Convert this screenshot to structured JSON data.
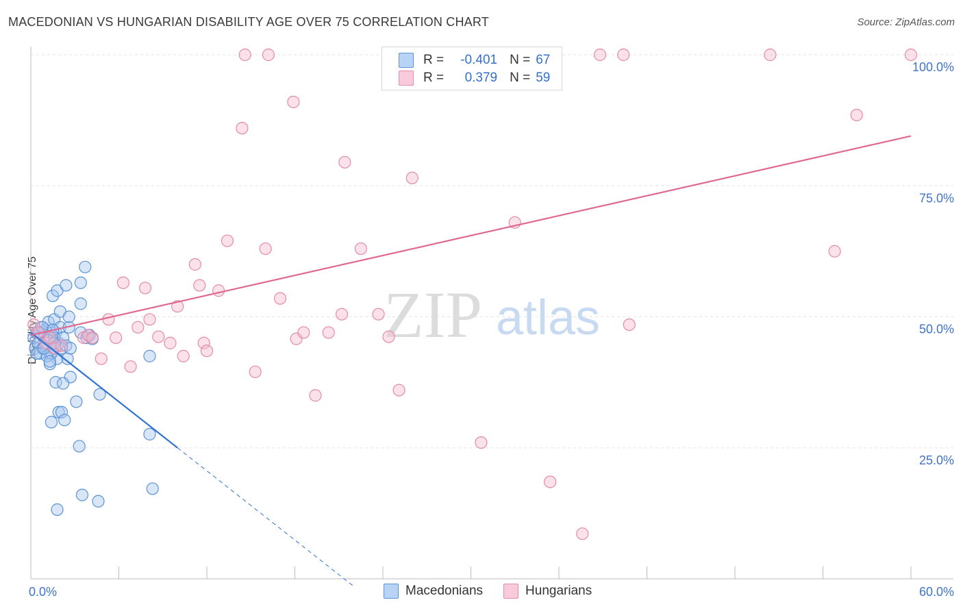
{
  "title": "MACEDONIAN VS HUNGARIAN DISABILITY AGE OVER 75 CORRELATION CHART",
  "source": "Source: ZipAtlas.com",
  "watermark": {
    "zip": "ZIP",
    "atlas": "atlas"
  },
  "legend": {
    "rows": [
      {
        "r_label": "R =",
        "r_value": "-0.401",
        "n_label": "N =",
        "n_value": "67"
      },
      {
        "r_label": "R =",
        "r_value": "0.379",
        "n_label": "N =",
        "n_value": "59"
      }
    ]
  },
  "bottom_legend": {
    "items": [
      "Macedonians",
      "Hungarians"
    ]
  },
  "colors": {
    "blue_fill": "#a8c8f0",
    "blue_stroke": "#5b93d6",
    "blue_line": "#2f72d2",
    "pink_fill": "#f5bcd0",
    "pink_stroke": "#e58aa8",
    "pink_line": "#e06890",
    "axis_text": "#3f74c9",
    "grid": "#e3e3e3"
  },
  "chart_data": {
    "type": "scatter",
    "title": "MACEDONIAN VS HUNGARIAN DISABILITY AGE OVER 75 CORRELATION CHART",
    "xlabel": "",
    "ylabel": "Disability Age Over 75",
    "xlim": [
      0,
      60
    ],
    "ylim": [
      0,
      105
    ],
    "x_tick_labels": [
      "0.0%",
      "60.0%"
    ],
    "y_ticks": [
      25,
      50,
      75,
      100
    ],
    "y_tick_labels": [
      "25.0%",
      "50.0%",
      "75.0%",
      "100.0%"
    ],
    "grid": true,
    "series": [
      {
        "name": "Macedonians",
        "r": -0.401,
        "n": 67,
        "trend": {
          "x_start": 0,
          "y_start": 47,
          "x_solid_end": 10,
          "x_dash_end": 22,
          "slope": -2.2
        },
        "points": [
          [
            0.2,
            46
          ],
          [
            0.3,
            44
          ],
          [
            0.4,
            47
          ],
          [
            0.5,
            45
          ],
          [
            0.6,
            43
          ],
          [
            0.7,
            48
          ],
          [
            0.8,
            44
          ],
          [
            0.9,
            46
          ],
          [
            1.0,
            47.5
          ],
          [
            1.1,
            45
          ],
          [
            1.2,
            49
          ],
          [
            1.3,
            43
          ],
          [
            1.4,
            46
          ],
          [
            1.5,
            44
          ],
          [
            1.6,
            49.5
          ],
          [
            1.7,
            47
          ],
          [
            1.8,
            42
          ],
          [
            1.9,
            45
          ],
          [
            2.0,
            48
          ],
          [
            2.1,
            44
          ],
          [
            1.0,
            46.5
          ],
          [
            1.2,
            45.5
          ],
          [
            1.4,
            43
          ],
          [
            0.6,
            47
          ],
          [
            0.8,
            48
          ],
          [
            1.6,
            46
          ],
          [
            1.8,
            44.5
          ],
          [
            2.2,
            46
          ],
          [
            0.4,
            43
          ],
          [
            2.5,
            42
          ],
          [
            1.3,
            41
          ],
          [
            1.1,
            42.5
          ],
          [
            0.9,
            44
          ],
          [
            1.5,
            47.5
          ],
          [
            2.4,
            44.5
          ],
          [
            2.6,
            48
          ],
          [
            2.7,
            44
          ],
          [
            3.4,
            47
          ],
          [
            3.8,
            46
          ],
          [
            4.0,
            46.5
          ],
          [
            4.2,
            45.8
          ],
          [
            1.3,
            41.5
          ],
          [
            1.5,
            54
          ],
          [
            1.8,
            55
          ],
          [
            2.0,
            51
          ],
          [
            2.6,
            50
          ],
          [
            2.4,
            56
          ],
          [
            3.4,
            56.5
          ],
          [
            3.4,
            52.5
          ],
          [
            3.7,
            59.5
          ],
          [
            1.7,
            37.5
          ],
          [
            2.7,
            38.5
          ],
          [
            2.2,
            37.3
          ],
          [
            3.1,
            33.8
          ],
          [
            4.7,
            35.2
          ],
          [
            1.9,
            31.8
          ],
          [
            2.1,
            31.8
          ],
          [
            2.3,
            30.3
          ],
          [
            1.4,
            29.9
          ],
          [
            8.1,
            42.5
          ],
          [
            8.1,
            27.6
          ],
          [
            3.3,
            25.3
          ],
          [
            3.5,
            16
          ],
          [
            4.6,
            14.8
          ],
          [
            8.3,
            17.2
          ],
          [
            1.8,
            13.2
          ],
          [
            1.6,
            45
          ]
        ]
      },
      {
        "name": "Hungarians",
        "r": 0.379,
        "n": 59,
        "trend": {
          "x_start": 0,
          "y_start": 46.5,
          "x_end": 60,
          "y_end": 84.5
        },
        "points": [
          [
            0.2,
            48.5
          ],
          [
            0.5,
            47
          ],
          [
            1.0,
            45
          ],
          [
            1.3,
            46
          ],
          [
            1.6,
            44
          ],
          [
            2.1,
            44.5
          ],
          [
            3.6,
            46
          ],
          [
            3.9,
            46.5
          ],
          [
            4.2,
            46
          ],
          [
            4.8,
            42
          ],
          [
            5.3,
            49.5
          ],
          [
            5.8,
            46
          ],
          [
            6.3,
            56.5
          ],
          [
            6.8,
            40.5
          ],
          [
            7.3,
            48
          ],
          [
            7.8,
            55.5
          ],
          [
            8.1,
            49.5
          ],
          [
            8.7,
            46.2
          ],
          [
            9.5,
            45
          ],
          [
            10.0,
            52
          ],
          [
            10.4,
            42.5
          ],
          [
            11.2,
            60
          ],
          [
            11.5,
            56
          ],
          [
            11.8,
            45
          ],
          [
            12.0,
            43.5
          ],
          [
            12.8,
            55
          ],
          [
            13.4,
            64.5
          ],
          [
            14.4,
            86
          ],
          [
            14.6,
            100
          ],
          [
            15.3,
            39.5
          ],
          [
            16.0,
            63
          ],
          [
            16.2,
            100
          ],
          [
            17.0,
            53.5
          ],
          [
            17.9,
            91
          ],
          [
            18.1,
            45.8
          ],
          [
            18.6,
            47
          ],
          [
            19.4,
            35
          ],
          [
            20.3,
            47
          ],
          [
            21.2,
            50.5
          ],
          [
            21.4,
            79.5
          ],
          [
            22.5,
            63
          ],
          [
            23.7,
            50.5
          ],
          [
            24.4,
            46.2
          ],
          [
            25.1,
            36
          ],
          [
            25.6,
            98.5
          ],
          [
            26.0,
            76.5
          ],
          [
            28.0,
            100
          ],
          [
            29.5,
            100
          ],
          [
            30.7,
            26
          ],
          [
            33.0,
            68
          ],
          [
            35.4,
            18.5
          ],
          [
            37.6,
            8.6
          ],
          [
            38.8,
            100
          ],
          [
            40.4,
            100
          ],
          [
            40.8,
            48.5
          ],
          [
            50.4,
            100
          ],
          [
            54.8,
            62.5
          ],
          [
            56.3,
            88.5
          ],
          [
            60.0,
            100
          ]
        ]
      }
    ]
  }
}
